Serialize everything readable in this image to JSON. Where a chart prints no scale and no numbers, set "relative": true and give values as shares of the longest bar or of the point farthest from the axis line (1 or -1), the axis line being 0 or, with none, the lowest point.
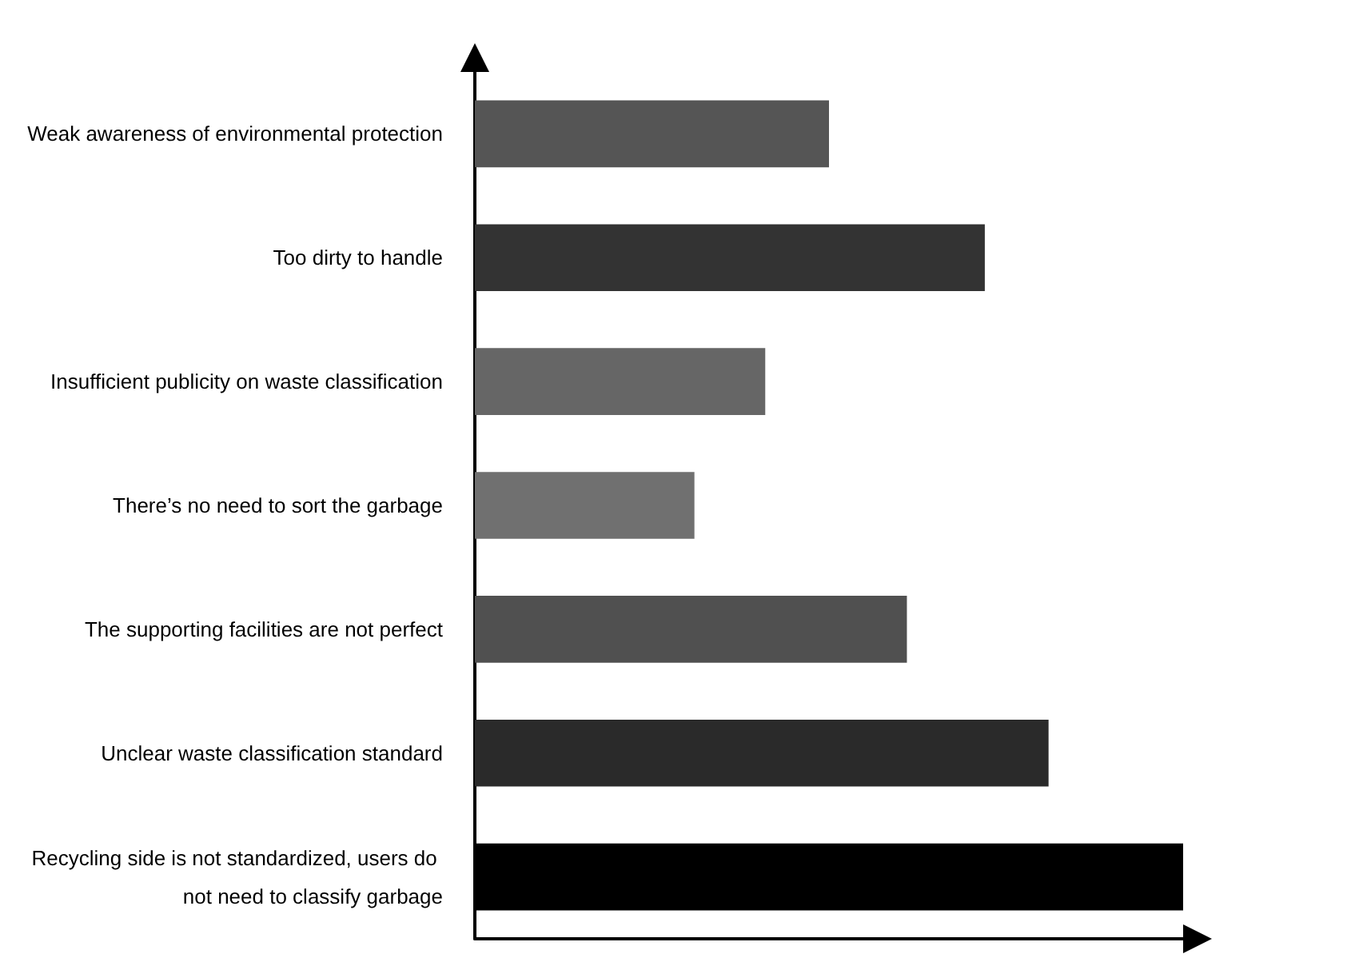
{
  "chart_data": {
    "type": "bar",
    "orientation": "horizontal",
    "relative": true,
    "categories": [
      "Weak awareness of environmental protection",
      "Too dirty to handle",
      "Insufficient publicity on waste classification",
      "There’s no need to sort the garbage",
      "The supporting facilities are not perfect",
      "Unclear waste classification standard",
      "Recycling side is not standardized, users do not need to classify garbage"
    ],
    "values": [
      0.5,
      0.72,
      0.41,
      0.31,
      0.61,
      0.81,
      1
    ],
    "colors": [
      "#555555",
      "#333333",
      "#666666",
      "#707070",
      "#505050",
      "#2a2a2a",
      "#000000"
    ],
    "grid": false
  }
}
